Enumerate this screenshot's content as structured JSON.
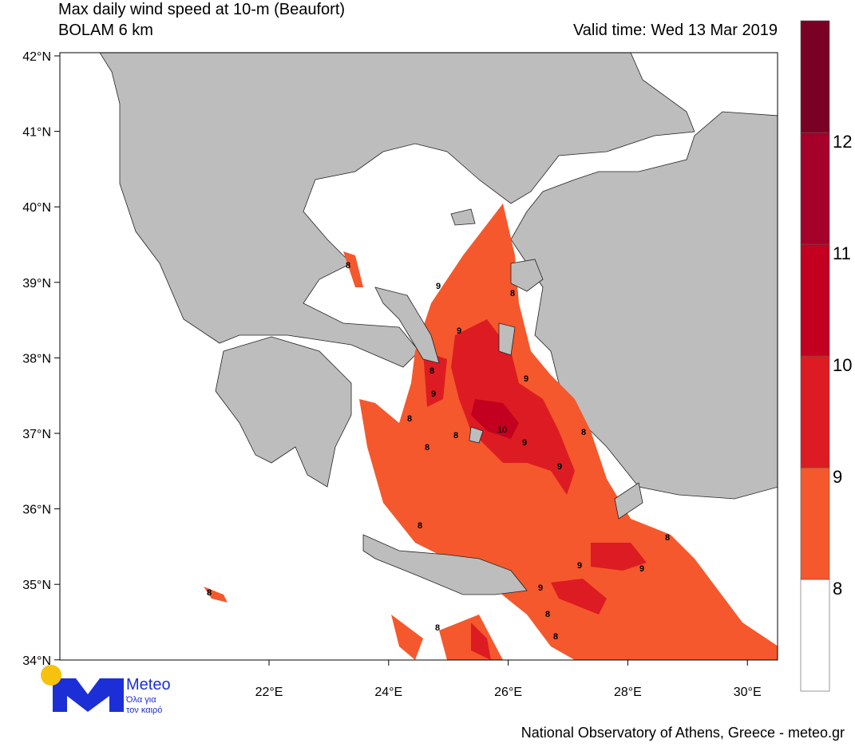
{
  "header": {
    "title": "Max daily wind speed at 10-m (Beaufort)",
    "model": "BOLAM 6 km",
    "valid_time": "Valid time: Wed 13 Mar 2019"
  },
  "map": {
    "lat_labels": [
      "42°N",
      "41°N",
      "40°N",
      "39°N",
      "38°N",
      "37°N",
      "36°N",
      "35°N",
      "34°N"
    ],
    "lon_labels": [
      "22°E",
      "24°E",
      "26°E",
      "28°E",
      "30°E"
    ],
    "contour_labels": [
      "8",
      "9",
      "8",
      "9",
      "8",
      "9",
      "9",
      "8",
      "8",
      "10",
      "9",
      "8",
      "8",
      "9",
      "8",
      "8",
      "9",
      "9",
      "9",
      "8",
      "8",
      "8",
      "8"
    ]
  },
  "colorbar": {
    "labels": [
      8,
      9,
      10,
      11,
      12
    ],
    "colors": [
      "#ffffff",
      "#f5582c",
      "#dc1c22",
      "#c40020",
      "#a5002a",
      "#7a0025"
    ]
  },
  "logo": {
    "name": "Meteo",
    "tagline_1": "Όλα για",
    "tagline_2": "τον καιρό"
  },
  "footer": "National Observatory of Athens, Greece - meteo.gr"
}
